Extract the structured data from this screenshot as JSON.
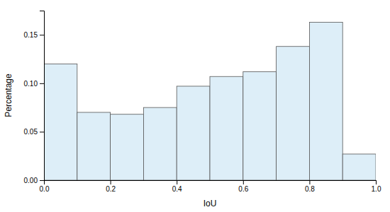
{
  "chart_data": {
    "type": "histogram",
    "bins": [
      0.0,
      0.1,
      0.2,
      0.3,
      0.4,
      0.5,
      0.6,
      0.7,
      0.8,
      0.9,
      1.0
    ],
    "values": [
      0.12,
      0.07,
      0.068,
      0.075,
      0.097,
      0.107,
      0.112,
      0.138,
      0.163,
      0.027
    ],
    "color": "#ddeef8",
    "xlabel": "IoU",
    "ylabel": "Percentage",
    "xlim": [
      0.0,
      1.0
    ],
    "ylim": [
      0.0,
      0.175
    ],
    "xticks": [
      {
        "value": 0.0,
        "label": "0.0"
      },
      0.2,
      0.4,
      0.6,
      0.8,
      {
        "value": 1.0,
        "label": "1.0"
      }
    ],
    "yticks": [
      {
        "value": 0.0,
        "label": "0.00"
      },
      {
        "value": 0.05,
        "label": "0.05"
      },
      {
        "value": 0.1,
        "label": "0.10"
      },
      {
        "value": 0.15,
        "label": "0.15"
      }
    ],
    "grid": false
  }
}
